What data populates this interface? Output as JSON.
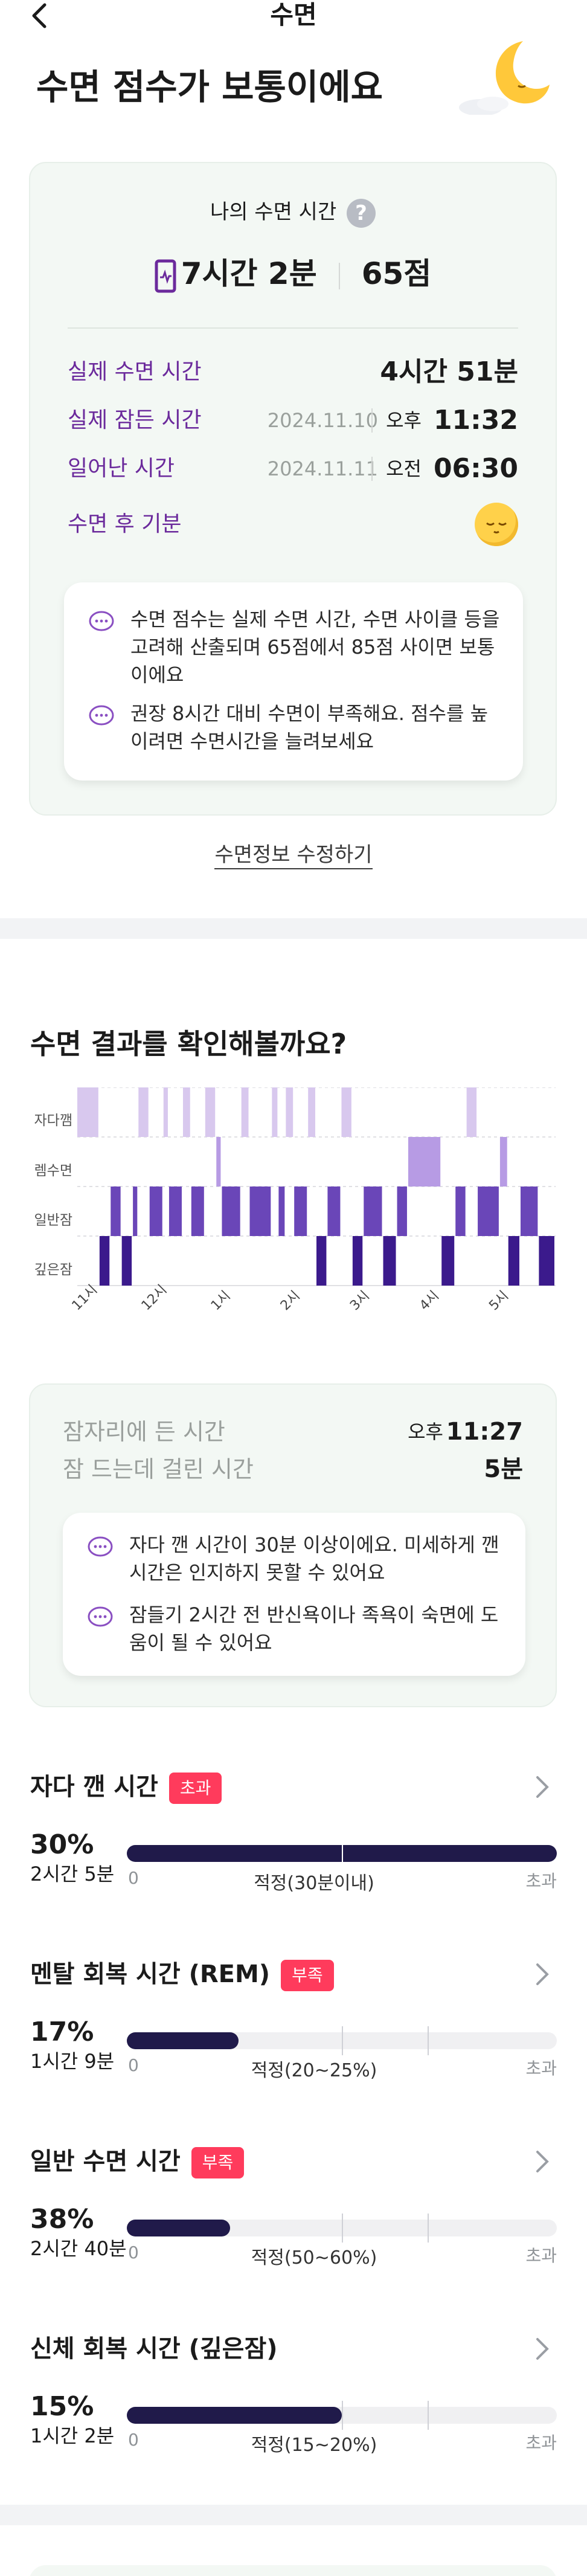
{
  "header": {
    "title": "수면"
  },
  "hero": {
    "title": "수면 점수가 보통이에요"
  },
  "summary_card": {
    "label": "나의 수면 시간",
    "help": "?",
    "total_time": "7시간 2분",
    "score": "65점",
    "rows": [
      {
        "label": "실제 수면 시간",
        "value": "4시간 51분"
      },
      {
        "label": "실제 잠든 시간",
        "date": "2024.11.10",
        "ampm": "오후",
        "time": "11:32"
      },
      {
        "label": "일어난 시간",
        "date": "2024.11.11",
        "ampm": "오전",
        "time": "06:30"
      },
      {
        "label": "수면 후 기분"
      }
    ],
    "tips": [
      "수면 점수는 실제 수면 시간, 수면 사이클 등을 고려해 산출되며 65점에서 85점 사이면 보통이에요",
      "권장 8시간 대비 수면이 부족해요. 점수를 높이려면 수면시간을 늘려보세요"
    ]
  },
  "edit_link": "수면정보 수정하기",
  "result_section": {
    "title": "수면 결과를 확인해볼까요?"
  },
  "chart_data": {
    "type": "heatmap",
    "stages": [
      "자다깸",
      "렘수면",
      "일반잠",
      "깊은잠"
    ],
    "x_ticks": [
      "11시",
      "12시",
      "1시",
      "2시",
      "3시",
      "4시",
      "5시"
    ],
    "segments": [
      {
        "stage": "자다깸",
        "start": 0.0,
        "end": 0.4
      },
      {
        "stage": "깊은잠",
        "start": 0.4,
        "end": 0.6
      },
      {
        "stage": "일반잠",
        "start": 0.6,
        "end": 0.8
      },
      {
        "stage": "깊은잠",
        "start": 0.8,
        "end": 1.0
      },
      {
        "stage": "일반잠",
        "start": 1.0,
        "end": 1.1
      },
      {
        "stage": "자다깸",
        "start": 1.1,
        "end": 1.3
      },
      {
        "stage": "일반잠",
        "start": 1.3,
        "end": 1.55
      },
      {
        "stage": "자다깸",
        "start": 1.55,
        "end": 1.65
      },
      {
        "stage": "일반잠",
        "start": 1.65,
        "end": 1.9
      },
      {
        "stage": "자다깸",
        "start": 1.9,
        "end": 2.05
      },
      {
        "stage": "일반잠",
        "start": 2.05,
        "end": 2.3
      },
      {
        "stage": "자다깸",
        "start": 2.3,
        "end": 2.5
      },
      {
        "stage": "렘수면",
        "start": 2.5,
        "end": 2.6
      },
      {
        "stage": "일반잠",
        "start": 2.6,
        "end": 2.95
      },
      {
        "stage": "자다깸",
        "start": 2.95,
        "end": 3.1
      },
      {
        "stage": "일반잠",
        "start": 3.1,
        "end": 3.5
      },
      {
        "stage": "자다깸",
        "start": 3.5,
        "end": 3.62
      },
      {
        "stage": "일반잠",
        "start": 3.62,
        "end": 3.75
      },
      {
        "stage": "자다깸",
        "start": 3.75,
        "end": 3.9
      },
      {
        "stage": "일반잠",
        "start": 3.9,
        "end": 4.15
      },
      {
        "stage": "자다깸",
        "start": 4.15,
        "end": 4.3
      },
      {
        "stage": "깊은잠",
        "start": 4.3,
        "end": 4.5
      },
      {
        "stage": "일반잠",
        "start": 4.5,
        "end": 4.75
      },
      {
        "stage": "자다깸",
        "start": 4.75,
        "end": 4.95
      },
      {
        "stage": "깊은잠",
        "start": 4.95,
        "end": 5.15
      },
      {
        "stage": "일반잠",
        "start": 5.15,
        "end": 5.5
      },
      {
        "stage": "깊은잠",
        "start": 5.5,
        "end": 5.75
      },
      {
        "stage": "일반잠",
        "start": 5.75,
        "end": 5.95
      },
      {
        "stage": "렘수면",
        "start": 5.95,
        "end": 6.55
      },
      {
        "stage": "깊은잠",
        "start": 6.55,
        "end": 6.8
      },
      {
        "stage": "일반잠",
        "start": 6.8,
        "end": 7.0
      },
      {
        "stage": "자다깸",
        "start": 7.0,
        "end": 7.2
      },
      {
        "stage": "일반잠",
        "start": 7.2,
        "end": 7.6
      },
      {
        "stage": "렘수면",
        "start": 7.6,
        "end": 7.75
      },
      {
        "stage": "깊은잠",
        "start": 7.75,
        "end": 7.97
      },
      {
        "stage": "일반잠",
        "start": 7.97,
        "end": 8.3
      },
      {
        "stage": "깊은잠",
        "start": 8.3,
        "end": 8.6
      }
    ],
    "x_range": [
      0,
      8.6
    ],
    "colors": {
      "자다깸": "#d8c8ee",
      "렘수면": "#b79be4",
      "일반잠": "#6a46b8",
      "깊은잠": "#3b1a8c"
    }
  },
  "bed_card": {
    "rows": [
      {
        "label": "잠자리에 든 시간",
        "ampm": "오후",
        "value": "11:27"
      },
      {
        "label": "잠 드는데 걸린 시간",
        "value": "5분"
      }
    ],
    "tips": [
      "자다 깬 시간이 30분 이상이에요. 미세하게 깬 시간은 인지하지 못할 수 있어요",
      "잠들기 2시간 전 반신욕이나 족욕이 숙면에 도움이 될 수 있어요"
    ]
  },
  "metrics": [
    {
      "title": "자다 깬 시간",
      "badge": "초과",
      "percent": "30%",
      "duration": "2시간 5분",
      "fill": 1.0,
      "scale_min": "0",
      "scale_mid": "적정(30분이내)",
      "scale_max": "초과",
      "marker": 0.5
    },
    {
      "title": "멘탈 회복 시간 (REM)",
      "badge": "부족",
      "percent": "17%",
      "duration": "1시간 9분",
      "fill": 0.26,
      "scale_min": "0",
      "scale_mid": "적정(20~25%)",
      "scale_max": "초과",
      "marker": 0.5,
      "marker2": 0.7
    },
    {
      "title": "일반 수면 시간",
      "badge": "부족",
      "percent": "38%",
      "duration": "2시간 40분",
      "fill": 0.24,
      "scale_min": "0",
      "scale_mid": "적정(50~60%)",
      "scale_max": "초과",
      "marker": 0.5,
      "marker2": 0.7
    },
    {
      "title": "신체 회복 시간 (깊은잠)",
      "badge": "",
      "percent": "15%",
      "duration": "1시간 2분",
      "fill": 0.5,
      "scale_min": "0",
      "scale_mid": "적정(15~20%)",
      "scale_max": "초과",
      "marker": 0.5,
      "marker2": 0.7
    }
  ],
  "colors": {
    "accent_purple": "#6b2a9c",
    "badge_red": "#ff3b5c",
    "bar_navy": "#201a4a"
  }
}
